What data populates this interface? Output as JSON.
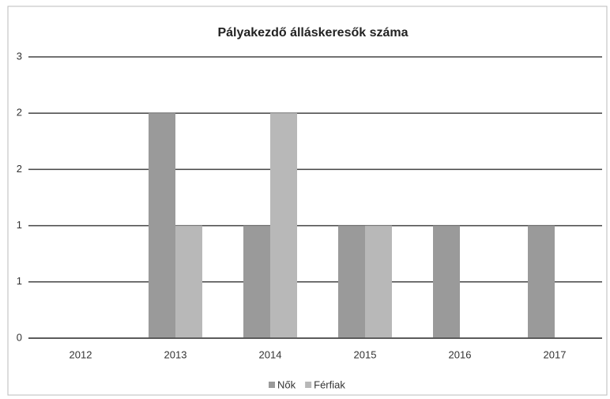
{
  "chart_data": {
    "type": "bar",
    "title": "Pályakezdő álláskeresők száma",
    "categories": [
      "2012",
      "2013",
      "2014",
      "2015",
      "2016",
      "2017"
    ],
    "series": [
      {
        "name": "Nők",
        "color": "#9a9a9a",
        "values": [
          0,
          2,
          1,
          1,
          1,
          1
        ]
      },
      {
        "name": "Férfiak",
        "color": "#b8b8b8",
        "values": [
          0,
          1,
          2,
          1,
          0,
          0
        ]
      }
    ],
    "ylim": [
      0,
      2.5
    ],
    "yticks": [
      0,
      {
        "value": 0.5,
        "label": "1"
      },
      1,
      {
        "value": 1.5,
        "label": "2"
      },
      2,
      {
        "value": 2.5,
        "label": "3"
      }
    ],
    "grid": true,
    "legend": "bottom"
  }
}
